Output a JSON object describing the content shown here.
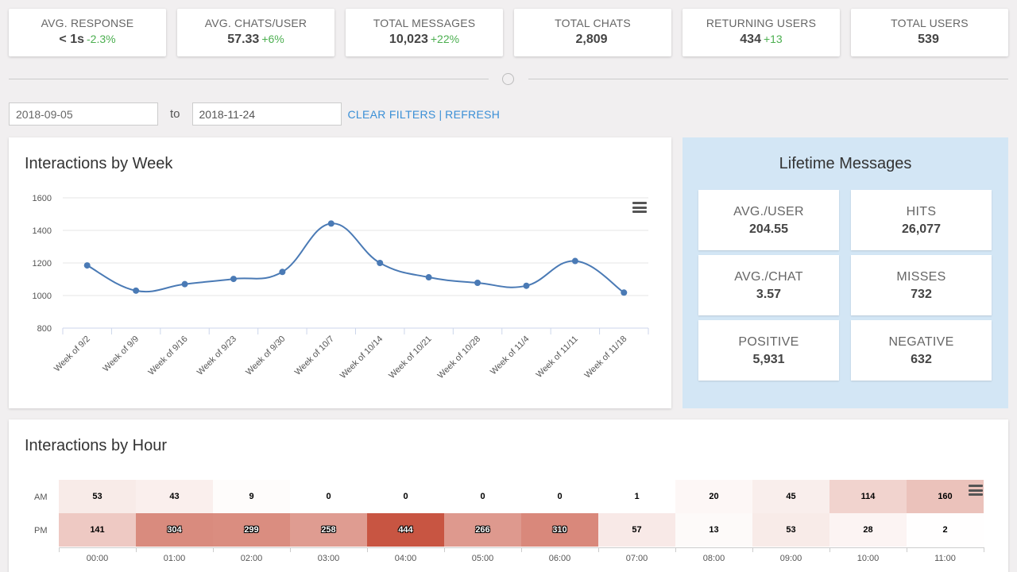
{
  "stats": [
    {
      "label": "AVG. RESPONSE",
      "value": "< 1s",
      "change": "-2.3%"
    },
    {
      "label": "AVG. CHATS/USER",
      "value": "57.33",
      "change": "+6%"
    },
    {
      "label": "TOTAL MESSAGES",
      "value": "10,023",
      "change": "+22%"
    },
    {
      "label": "TOTAL CHATS",
      "value": "2,809",
      "change": ""
    },
    {
      "label": "RETURNING USERS",
      "value": "434",
      "change": "+13"
    },
    {
      "label": "TOTAL USERS",
      "value": "539",
      "change": ""
    }
  ],
  "filters": {
    "from_value": "2018-09-05",
    "to_label": "to",
    "to_value": "2018-11-24",
    "clear_label": "CLEAR FILTERS",
    "separator": "|",
    "refresh_label": "REFRESH"
  },
  "icons": {
    "menu": "hamburger-menu-icon",
    "divider": "circle-toggle-icon"
  },
  "colors": {
    "accent": "#3a8fd6",
    "positive": "#4caf50",
    "line": "#4a7ab5",
    "lifetime_bg": "#d3e6f5",
    "heat_max": "#c85542"
  },
  "week_chart": {
    "title": "Interactions by Week",
    "chart_data": {
      "type": "line",
      "categories": [
        "Week of 9/2",
        "Week of 9/9",
        "Week of 9/16",
        "Week of 9/23",
        "Week of 9/30",
        "Week of 10/7",
        "Week of 10/14",
        "Week of 10/21",
        "Week of 10/28",
        "Week of 11/4",
        "Week of 11/11",
        "Week of 11/18"
      ],
      "values": [
        1185,
        1030,
        1070,
        1102,
        1145,
        1442,
        1200,
        1112,
        1078,
        1060,
        1212,
        1018
      ],
      "ylim": [
        800,
        1600
      ],
      "yticks": [
        800,
        1000,
        1200,
        1400,
        1600
      ],
      "grid": true,
      "legend": "none"
    }
  },
  "lifetime": {
    "title": "Lifetime Messages",
    "cards": [
      {
        "label": "AVG./USER",
        "value": "204.55"
      },
      {
        "label": "HITS",
        "value": "26,077"
      },
      {
        "label": "AVG./CHAT",
        "value": "3.57"
      },
      {
        "label": "MISSES",
        "value": "732"
      },
      {
        "label": "POSITIVE",
        "value": "5,931"
      },
      {
        "label": "NEGATIVE",
        "value": "632"
      }
    ]
  },
  "hour_chart": {
    "title": "Interactions by Hour",
    "chart_data": {
      "type": "heatmap",
      "rows": [
        "AM",
        "PM"
      ],
      "columns": [
        "00:00",
        "01:00",
        "02:00",
        "03:00",
        "04:00",
        "05:00",
        "06:00",
        "07:00",
        "08:00",
        "09:00",
        "10:00",
        "11:00"
      ],
      "values": [
        [
          53,
          43,
          9,
          0,
          0,
          0,
          0,
          1,
          20,
          45,
          114,
          160
        ],
        [
          141,
          304,
          299,
          258,
          444,
          266,
          310,
          57,
          13,
          53,
          28,
          2
        ]
      ],
      "max": 444
    }
  }
}
